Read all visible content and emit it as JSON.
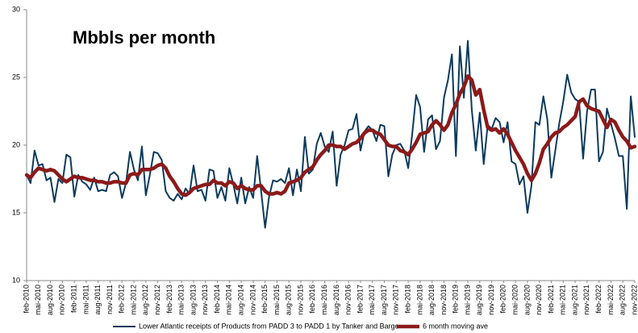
{
  "chart_data": {
    "type": "line",
    "title": "Mbbls per month",
    "categories": [
      "feb-2010",
      null,
      null,
      "mai-2010",
      null,
      null,
      "aug-2010",
      null,
      null,
      "nov-2010",
      null,
      null,
      "feb-2011",
      null,
      null,
      "mai-2011",
      null,
      null,
      "aug-2011",
      null,
      null,
      "nov-2011",
      null,
      null,
      "feb-2012",
      null,
      null,
      "mai-2012",
      null,
      null,
      "aug-2012",
      null,
      null,
      "nov-2012",
      null,
      null,
      "feb-2013",
      null,
      null,
      "mai-2013",
      null,
      null,
      "aug-2013",
      null,
      null,
      "nov-2013",
      null,
      null,
      "feb-2014",
      null,
      null,
      "mai-2014",
      null,
      null,
      "aug-2014",
      null,
      null,
      "nov-2014",
      null,
      null,
      "feb-2015",
      null,
      null,
      "mai-2015",
      null,
      null,
      "aug-2015",
      null,
      null,
      "nov-2015",
      null,
      null,
      "feb-2016",
      null,
      null,
      "mai-2016",
      null,
      null,
      "aug-2016",
      null,
      null,
      "nov-2016",
      null,
      null,
      "feb-2017",
      null,
      null,
      "mai-2017",
      null,
      null,
      "aug-2017",
      null,
      null,
      "nov-2017",
      null,
      null,
      "feb-2018",
      null,
      null,
      "mai-2018",
      null,
      null,
      "aug-2018",
      null,
      null,
      "nov-2018",
      null,
      null,
      "feb-2019",
      null,
      null,
      "mai-2019",
      null,
      null,
      "aug-2019",
      null,
      null,
      "nov-2019",
      null,
      null,
      "feb-2020",
      null,
      null,
      "mai-2020",
      null,
      null,
      "aug-2020",
      null,
      null,
      "nov-2020",
      null,
      null,
      "feb-2021",
      null,
      null,
      "mai-2021",
      null,
      null,
      "aug-2021",
      null,
      null,
      "nov-2021",
      null,
      null,
      "feb-2022",
      null,
      null,
      "mai-2022",
      null,
      null,
      "aug-2022",
      null,
      null,
      "nov-2022"
    ],
    "series": [
      {
        "name": "Lower Atlantic receipts of Products from PADD 3 to PADD 1 by Tanker and Barge",
        "color": "#0b3a5c",
        "width": 2,
        "values": [
          17.8,
          17.2,
          19.6,
          18.5,
          18.6,
          17.4,
          17.6,
          15.8,
          17.5,
          17.2,
          19.3,
          19.1,
          16.2,
          17.8,
          17.3,
          17.1,
          16.7,
          17.6,
          16.6,
          16.7,
          16.6,
          17.8,
          18.0,
          17.7,
          16.1,
          17.2,
          19.5,
          18.2,
          17.4,
          19.9,
          16.3,
          17.8,
          19.5,
          19.4,
          18.9,
          16.6,
          16.1,
          15.9,
          16.4,
          16.0,
          16.8,
          16.4,
          18.5,
          16.6,
          16.7,
          15.9,
          18.2,
          18.1,
          16.1,
          16.9,
          15.9,
          18.3,
          17.1,
          15.7,
          17.6,
          15.7,
          16.9,
          16.1,
          19.2,
          16.6,
          13.9,
          16.2,
          17.4,
          17.3,
          17.5,
          17.2,
          18.3,
          16.3,
          18.2,
          16.6,
          20.6,
          17.9,
          18.2,
          20.1,
          20.9,
          19.9,
          19.5,
          21.0,
          17.0,
          19.3,
          20.0,
          21.1,
          21.2,
          22.3,
          19.6,
          21.0,
          21.4,
          21.1,
          20.3,
          21.5,
          21.4,
          17.7,
          19.3,
          20.0,
          20.1,
          19.6,
          18.3,
          20.8,
          23.7,
          22.8,
          19.5,
          21.9,
          22.2,
          19.7,
          20.3,
          23.5,
          24.8,
          26.7,
          19.2,
          27.3,
          23.5,
          27.7,
          22.6,
          19.6,
          22.4,
          18.6,
          21.5,
          21.2,
          22.0,
          21.7,
          20.2,
          21.7,
          18.8,
          18.6,
          17.1,
          17.7,
          15.0,
          17.0,
          21.7,
          21.5,
          23.6,
          21.9,
          17.6,
          19.6,
          21.6,
          23.2,
          25.2,
          23.9,
          23.4,
          23.2,
          19.0,
          22.5,
          24.1,
          24.1,
          18.8,
          19.5,
          22.7,
          21.6,
          20.5,
          19.2,
          19.2,
          15.3,
          23.6,
          20.6
        ]
      },
      {
        "name": "6 month moving ave",
        "color": "#8b1a1a",
        "width": 4.5,
        "values": [
          17.8,
          17.6,
          18.0,
          18.3,
          18.2,
          18.1,
          18.2,
          18.1,
          17.8,
          17.5,
          17.3,
          17.5,
          17.7,
          17.6,
          17.6,
          17.5,
          17.4,
          17.4,
          17.3,
          17.3,
          17.2,
          17.2,
          17.3,
          17.3,
          17.2,
          17.2,
          17.8,
          17.9,
          17.8,
          18.2,
          18.2,
          18.2,
          18.3,
          18.5,
          18.6,
          18.3,
          17.7,
          17.3,
          16.8,
          16.4,
          16.3,
          16.5,
          16.8,
          16.9,
          17.0,
          17.1,
          17.1,
          17.4,
          17.2,
          17.2,
          17.0,
          17.3,
          17.2,
          16.8,
          17.0,
          16.8,
          16.7,
          16.7,
          17.0,
          17.0,
          16.6,
          16.4,
          16.4,
          16.5,
          16.4,
          16.6,
          17.2,
          17.3,
          17.4,
          17.6,
          18.0,
          18.2,
          18.4,
          18.9,
          19.3,
          19.6,
          20.0,
          20.0,
          19.9,
          19.9,
          19.7,
          19.9,
          20.1,
          20.2,
          20.5,
          20.9,
          21.1,
          21.1,
          20.9,
          20.8,
          20.4,
          20.0,
          19.9,
          19.9,
          19.6,
          19.5,
          19.3,
          19.7,
          20.2,
          20.8,
          20.9,
          21.0,
          21.5,
          21.8,
          21.5,
          21.1,
          21.5,
          22.4,
          23.0,
          23.8,
          24.3,
          25.1,
          24.8,
          23.7,
          24.1,
          22.6,
          21.3,
          21.1,
          21.2,
          20.9,
          21.2,
          20.8,
          20.2,
          19.6,
          19.1,
          18.6,
          17.9,
          17.4,
          17.9,
          18.7,
          19.7,
          20.1,
          20.6,
          20.9,
          21.0,
          21.3,
          21.5,
          21.8,
          22.1,
          23.2,
          23.4,
          22.9,
          22.7,
          22.6,
          22.5,
          21.9,
          21.3,
          21.9,
          21.7,
          21.1,
          20.6,
          20.3,
          19.8,
          19.9
        ]
      }
    ],
    "ylim": [
      10,
      30
    ],
    "yticks": [
      10,
      15,
      20,
      25,
      30
    ],
    "grid": false,
    "legend": "bottom"
  }
}
